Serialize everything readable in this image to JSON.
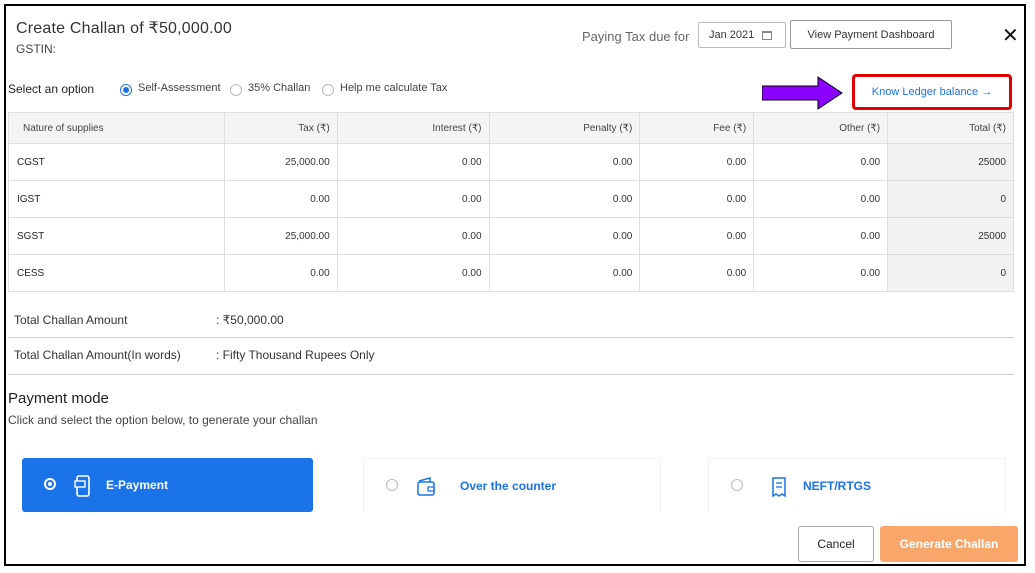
{
  "header": {
    "title": "Create Challan of ₹50,000.00",
    "gstin_label": "GSTIN:",
    "paying_label": "Paying Tax due for",
    "period_value": "Jan 2021",
    "dashboard_button": "View Payment Dashboard",
    "close_glyph": "✕"
  },
  "options": {
    "label": "Select an option",
    "choices": [
      {
        "label": "Self-Assessment",
        "selected": true
      },
      {
        "label": "35% Challan",
        "selected": false
      },
      {
        "label": "Help me calculate Tax",
        "selected": false
      }
    ],
    "ledger_link": "Know Ledger balance →"
  },
  "table": {
    "columns": [
      "Nature of supplies",
      "Tax (₹)",
      "Interest (₹)",
      "Penalty (₹)",
      "Fee (₹)",
      "Other (₹)",
      "Total (₹)"
    ],
    "rows": [
      [
        "CGST",
        "25,000.00",
        "0.00",
        "0.00",
        "0.00",
        "0.00",
        "25000"
      ],
      [
        "IGST",
        "0.00",
        "0.00",
        "0.00",
        "0.00",
        "0.00",
        "0"
      ],
      [
        "SGST",
        "25,000.00",
        "0.00",
        "0.00",
        "0.00",
        "0.00",
        "25000"
      ],
      [
        "CESS",
        "0.00",
        "0.00",
        "0.00",
        "0.00",
        "0.00",
        "0"
      ]
    ]
  },
  "summary": {
    "amount_label": "Total Challan Amount",
    "amount_value": ": ₹50,000.00",
    "words_label": "Total Challan Amount(In words)",
    "words_value": ": Fifty Thousand Rupees Only"
  },
  "payment": {
    "title": "Payment mode",
    "subtitle": "Click and select the option below, to generate your challan",
    "modes": [
      {
        "label": "E-Payment",
        "icon": "phone-card-icon",
        "selected": true
      },
      {
        "label": "Over the counter",
        "icon": "wallet-icon",
        "selected": false
      },
      {
        "label": "NEFT/RTGS",
        "icon": "document-icon",
        "selected": false
      }
    ]
  },
  "footer": {
    "cancel_label": "Cancel",
    "generate_label": "Generate Challan"
  },
  "colors": {
    "accent": "#1a73e8",
    "highlight_box": "#e00000",
    "annotation_arrow": "#8b00ff",
    "generate_button": "#f9a66a"
  }
}
